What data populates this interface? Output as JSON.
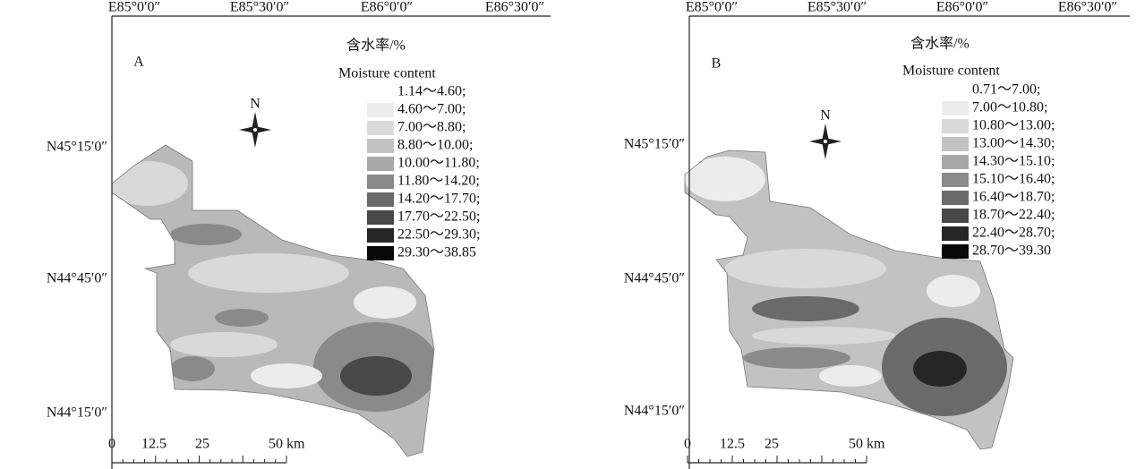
{
  "panels": [
    {
      "label": "A",
      "top_axis": [
        "E85°0′0″",
        "E85°30′0″",
        "E86°0′0″",
        "E86°30′0″"
      ],
      "left_axis": [
        "N45°15′0″",
        "N44°45′0″",
        "N44°15′0″"
      ],
      "legend": {
        "title": "含水率/%",
        "subtitle": "Moisture content",
        "entries": [
          {
            "label": "1.14～4.60;",
            "color": "#ffffff"
          },
          {
            "label": "4.60～7.00;",
            "color": "#ececec"
          },
          {
            "label": "7.00～8.80;",
            "color": "#d9d9d9"
          },
          {
            "label": "8.80～10.00;",
            "color": "#c2c2c2"
          },
          {
            "label": "10.00～11.80;",
            "color": "#a8a8a8"
          },
          {
            "label": "11.80～14.20;",
            "color": "#8a8a8a"
          },
          {
            "label": "14.20～17.70;",
            "color": "#6a6a6a"
          },
          {
            "label": "17.70～22.50;",
            "color": "#484848"
          },
          {
            "label": "22.50～29.30;",
            "color": "#262626"
          },
          {
            "label": "29.30～38.85",
            "color": "#080808"
          }
        ]
      },
      "north": "N",
      "scale": [
        "0",
        "12.5",
        "25",
        "50 km"
      ]
    },
    {
      "label": "B",
      "top_axis": [
        "E85°0′0″",
        "E85°30′0″",
        "E86°0′0″",
        "E86°30′0″"
      ],
      "left_axis": [
        "N45°15′0″",
        "N44°45′0″",
        "N44°15′0″"
      ],
      "legend": {
        "title": "含水率/%",
        "subtitle": "Moisture content",
        "entries": [
          {
            "label": "0.71～7.00;",
            "color": "#ffffff"
          },
          {
            "label": "7.00～10.80;",
            "color": "#ececec"
          },
          {
            "label": "10.80～13.00;",
            "color": "#d9d9d9"
          },
          {
            "label": "13.00～14.30;",
            "color": "#c2c2c2"
          },
          {
            "label": "14.30～15.10;",
            "color": "#a8a8a8"
          },
          {
            "label": "15.10～16.40;",
            "color": "#8a8a8a"
          },
          {
            "label": "16.40～18.70;",
            "color": "#6a6a6a"
          },
          {
            "label": "18.70～22.40;",
            "color": "#484848"
          },
          {
            "label": "22.40～28.70;",
            "color": "#262626"
          },
          {
            "label": "28.70～39.30",
            "color": "#080808"
          }
        ]
      },
      "north": "N",
      "scale": [
        "0",
        "12.5",
        "25",
        "50 km"
      ]
    }
  ]
}
